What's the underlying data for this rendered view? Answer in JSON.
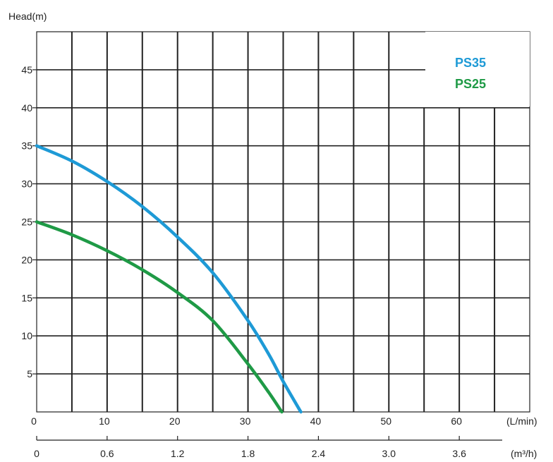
{
  "chart_data": {
    "type": "line",
    "ylabel": "Head(m)",
    "ylim": [
      0,
      50
    ],
    "y_ticks": [
      "5",
      "10",
      "15",
      "20",
      "25",
      "30",
      "35",
      "40",
      "45"
    ],
    "xlim": [
      0,
      65
    ],
    "x_unit_label": "(L/min)",
    "x_ticks": [
      "0",
      "10",
      "20",
      "30",
      "40",
      "50",
      "60"
    ],
    "x2_unit_label": "(m³/h)",
    "x2_ticks": [
      "0",
      "0.6",
      "1.2",
      "1.8",
      "2.4",
      "3.0",
      "3.6"
    ],
    "grid": true,
    "legend_position": "top-right",
    "series": [
      {
        "name": "PS35",
        "color": "#1e9ad6",
        "points": [
          [
            0,
            35
          ],
          [
            5,
            33
          ],
          [
            10,
            30.3
          ],
          [
            15,
            27
          ],
          [
            20,
            23
          ],
          [
            25,
            18.3
          ],
          [
            30,
            12
          ],
          [
            33,
            7.5
          ],
          [
            35,
            4
          ],
          [
            37.5,
            0
          ]
        ]
      },
      {
        "name": "PS25",
        "color": "#1f9a46",
        "points": [
          [
            0,
            25
          ],
          [
            5,
            23.3
          ],
          [
            10,
            21.2
          ],
          [
            15,
            18.7
          ],
          [
            20,
            15.7
          ],
          [
            25,
            12
          ],
          [
            30,
            6.3
          ],
          [
            33,
            2.5
          ],
          [
            34.8,
            0
          ]
        ]
      }
    ]
  }
}
